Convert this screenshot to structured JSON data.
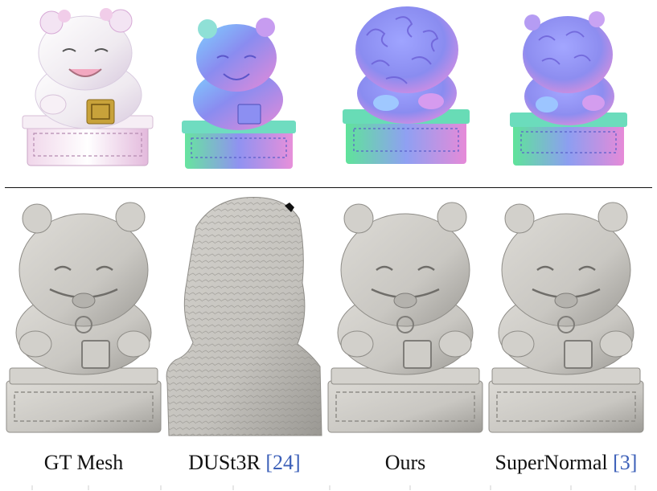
{
  "figure": {
    "top_row_label": "",
    "bottom_row_label": "",
    "captions": [
      {
        "name": "GT Mesh",
        "ref": ""
      },
      {
        "name": "DUSt3R ",
        "ref": "[24]"
      },
      {
        "name": "Ours",
        "ref": ""
      },
      {
        "name": "SuperNormal ",
        "ref": "[3]"
      }
    ]
  },
  "colors": {
    "mesh_gray": "#c9c7c2",
    "mesh_shadow": "#8f8d88",
    "normal_blue": "#8a8cf0",
    "normal_green": "#5fe39a",
    "normal_pink": "#e68ad8",
    "citation": "#3b5fb8",
    "gold": "#c8a23a"
  },
  "icons": [
    "photo-statue",
    "normal-map-statue",
    "mesh-statue",
    "noisy-mesh-statue"
  ]
}
